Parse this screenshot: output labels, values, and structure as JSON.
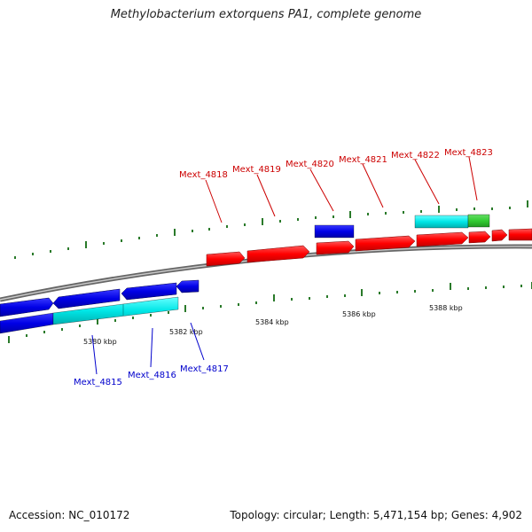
{
  "title": "Methylobacterium extorquens PA1, complete genome",
  "footer": {
    "accession": "Accession: NC_010172",
    "summary": "Topology: circular; Length: 5,471,154 bp; Genes: 4,902"
  },
  "colors": {
    "forward": "#ff0000",
    "reverse": "#0000e6",
    "cyan": "#00e6e6",
    "green": "#33cc33",
    "tick": "#227722",
    "backbone": "#888888",
    "label_forward": "#cc0000",
    "label_reverse": "#0000cc"
  },
  "scale_labels": [
    "5380 kbp",
    "5382 kbp",
    "5384 kbp",
    "5386 kbp",
    "5388 kbp"
  ],
  "gene_labels": {
    "forward": [
      "Mext_4818",
      "Mext_4819",
      "Mext_4820",
      "Mext_4821",
      "Mext_4822",
      "Mext_4823"
    ],
    "reverse": [
      "Mext_4815",
      "Mext_4816",
      "Mext_4817"
    ]
  }
}
